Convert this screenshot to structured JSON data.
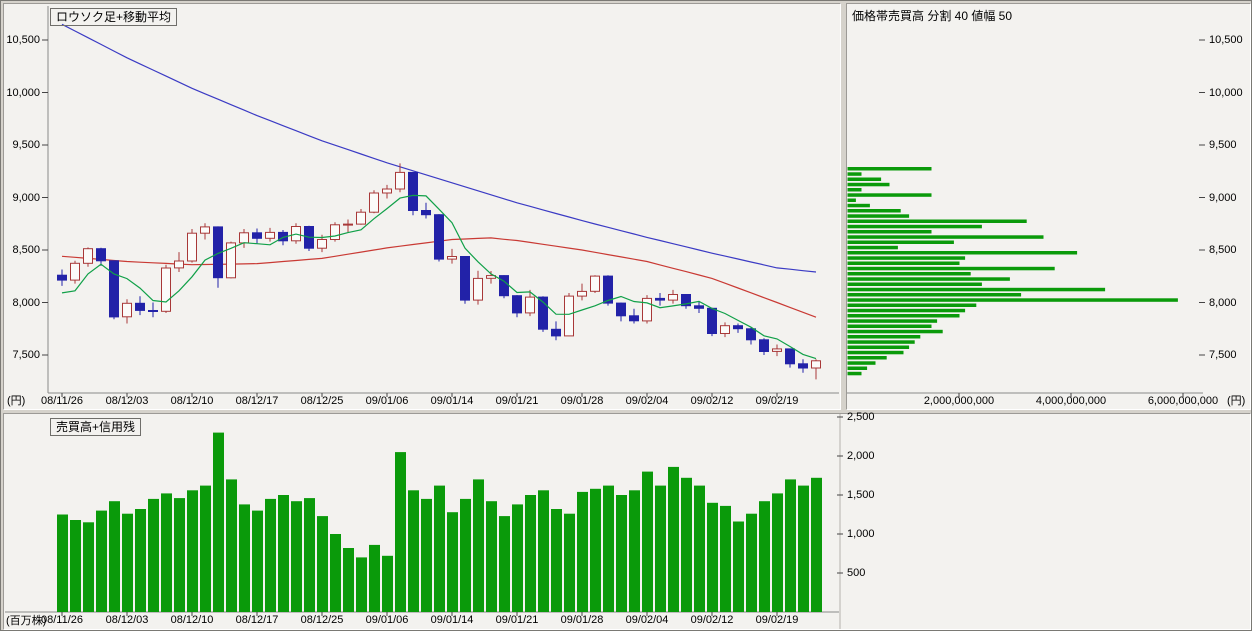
{
  "colors": {
    "app_background": "#d5d2cb",
    "plot_background": "#f3f2ef",
    "candle_up": "#a83838",
    "candle_up_fill": "#fbfbf9",
    "candle_down": "#2222a8",
    "ma_long": "#3b3bc4",
    "ma_mid": "#c93a34",
    "ma_short": "#10a048",
    "volume_bar": "#0a9a0a",
    "axis_line": "#8a8a8a",
    "tick_mark": "#444444"
  },
  "panels": {
    "main": {
      "title": "ロウソク足+移動平均",
      "y_unit": "(円)"
    },
    "pbv": {
      "title": "価格帯売買高  分割 40  値幅 50",
      "x_unit": "(円)"
    },
    "volume": {
      "title": "売買高+信用残",
      "y_unit": "(百万株)"
    }
  },
  "axis_labels": {
    "price_ticks": [
      {
        "v": 10500,
        "label": "10,500"
      },
      {
        "v": 10000,
        "label": "10,000"
      },
      {
        "v": 9500,
        "label": "9,500"
      },
      {
        "v": 9000,
        "label": "9,000"
      },
      {
        "v": 8500,
        "label": "8,500"
      },
      {
        "v": 8000,
        "label": "8,000"
      },
      {
        "v": 7500,
        "label": "7,500"
      }
    ],
    "date_ticks": [
      "08/11/26",
      "08/12/03",
      "08/12/10",
      "08/12/17",
      "08/12/25",
      "09/01/06",
      "09/01/14",
      "09/01/21",
      "09/01/28",
      "09/02/04",
      "09/02/12",
      "09/02/19"
    ],
    "pbv_value_ticks": [
      {
        "v": 2000000000,
        "label": "2,000,000,000"
      },
      {
        "v": 4000000000,
        "label": "4,000,000,000"
      },
      {
        "v": 6000000000,
        "label": "6,000,000,000"
      }
    ],
    "volume_ticks": [
      {
        "v": 2500,
        "label": "2,500"
      },
      {
        "v": 2000,
        "label": "2,000"
      },
      {
        "v": 1500,
        "label": "1,500"
      },
      {
        "v": 1000,
        "label": "1,000"
      },
      {
        "v": 500,
        "label": "500"
      }
    ]
  },
  "chart_data": [
    {
      "type": "candlestick",
      "title": "ロウソク足+移動平均",
      "unit": "円",
      "ylim": [
        7140,
        10820
      ],
      "tick_indices": [
        0,
        5,
        10,
        15,
        20,
        25,
        30,
        35,
        40,
        45,
        50,
        55
      ],
      "dates": [
        "08/11/26",
        "08/11/27",
        "08/11/28",
        "08/12/01",
        "08/12/02",
        "08/12/03",
        "08/12/04",
        "08/12/05",
        "08/12/08",
        "08/12/09",
        "08/12/10",
        "08/12/11",
        "08/12/12",
        "08/12/15",
        "08/12/16",
        "08/12/17",
        "08/12/18",
        "08/12/19",
        "08/12/22",
        "08/12/24",
        "08/12/25",
        "08/12/26",
        "08/12/29",
        "08/12/30",
        "09/01/05",
        "09/01/06",
        "09/01/07",
        "09/01/08",
        "09/01/09",
        "09/01/13",
        "09/01/14",
        "09/01/15",
        "09/01/16",
        "09/01/19",
        "09/01/20",
        "09/01/21",
        "09/01/22",
        "09/01/23",
        "09/01/26",
        "09/01/27",
        "09/01/28",
        "09/01/29",
        "09/01/30",
        "09/02/02",
        "09/02/03",
        "09/02/04",
        "09/02/05",
        "09/02/06",
        "09/02/09",
        "09/02/10",
        "09/02/12",
        "09/02/13",
        "09/02/16",
        "09/02/17",
        "09/02/18",
        "09/02/19",
        "09/02/20",
        "09/02/23",
        "09/02/24"
      ],
      "ohlc": [
        [
          8260,
          8314,
          8158,
          8213
        ],
        [
          8213,
          8398,
          8180,
          8373
        ],
        [
          8373,
          8525,
          8340,
          8512
        ],
        [
          8512,
          8522,
          8350,
          8397
        ],
        [
          8397,
          8400,
          7840,
          7863
        ],
        [
          7863,
          8030,
          7800,
          7992
        ],
        [
          7992,
          8060,
          7880,
          7924
        ],
        [
          7924,
          8000,
          7860,
          7917
        ],
        [
          7917,
          8360,
          7900,
          8329
        ],
        [
          8329,
          8480,
          8290,
          8395
        ],
        [
          8395,
          8700,
          8380,
          8660
        ],
        [
          8660,
          8755,
          8600,
          8720
        ],
        [
          8720,
          8725,
          8140,
          8236
        ],
        [
          8236,
          8580,
          8230,
          8568
        ],
        [
          8568,
          8700,
          8520,
          8664
        ],
        [
          8664,
          8705,
          8560,
          8612
        ],
        [
          8612,
          8710,
          8580,
          8668
        ],
        [
          8668,
          8690,
          8545,
          8588
        ],
        [
          8588,
          8755,
          8560,
          8724
        ],
        [
          8724,
          8730,
          8490,
          8517
        ],
        [
          8517,
          8645,
          8480,
          8600
        ],
        [
          8600,
          8765,
          8580,
          8740
        ],
        [
          8740,
          8790,
          8670,
          8747
        ],
        [
          8747,
          8890,
          8740,
          8860
        ],
        [
          8860,
          9070,
          8850,
          9043
        ],
        [
          9043,
          9120,
          8990,
          9081
        ],
        [
          9081,
          9325,
          9050,
          9239
        ],
        [
          9239,
          9240,
          8830,
          8876
        ],
        [
          8876,
          8950,
          8800,
          8836
        ],
        [
          8836,
          8840,
          8390,
          8413
        ],
        [
          8413,
          8510,
          8370,
          8438
        ],
        [
          8438,
          8440,
          7988,
          8023
        ],
        [
          8023,
          8303,
          7980,
          8230
        ],
        [
          8230,
          8300,
          8180,
          8256
        ],
        [
          8256,
          8260,
          8040,
          8065
        ],
        [
          8065,
          8070,
          7860,
          7901
        ],
        [
          7901,
          8120,
          7870,
          8051
        ],
        [
          8051,
          8060,
          7720,
          7745
        ],
        [
          7745,
          7820,
          7640,
          7682
        ],
        [
          7682,
          8090,
          7680,
          8061
        ],
        [
          8061,
          8180,
          8020,
          8106
        ],
        [
          8106,
          8260,
          8090,
          8251
        ],
        [
          8251,
          8260,
          7970,
          7994
        ],
        [
          7994,
          8000,
          7820,
          7873
        ],
        [
          7873,
          7940,
          7800,
          7825
        ],
        [
          7825,
          8070,
          7800,
          8039
        ],
        [
          8039,
          8090,
          7970,
          8023
        ],
        [
          8023,
          8120,
          7990,
          8076
        ],
        [
          8076,
          8080,
          7940,
          7969
        ],
        [
          7969,
          8010,
          7900,
          7945
        ],
        [
          7945,
          7950,
          7680,
          7705
        ],
        [
          7705,
          7810,
          7670,
          7779
        ],
        [
          7779,
          7800,
          7710,
          7750
        ],
        [
          7750,
          7760,
          7600,
          7645
        ],
        [
          7645,
          7660,
          7500,
          7534
        ],
        [
          7534,
          7600,
          7490,
          7558
        ],
        [
          7558,
          7560,
          7380,
          7416
        ],
        [
          7416,
          7460,
          7330,
          7376
        ],
        [
          7376,
          7460,
          7268,
          7445
        ]
      ],
      "ma_short_window": 5,
      "ma_short_seed_closes": [
        8273,
        7703,
        7943,
        8323
      ],
      "ma_mid_25d": [
        8440,
        8430,
        8420,
        8410,
        8400,
        8390,
        8384,
        8378,
        8372,
        8366,
        8360,
        8362,
        8364,
        8366,
        8368,
        8370,
        8380,
        8390,
        8400,
        8410,
        8420,
        8440,
        8460,
        8480,
        8500,
        8520,
        8536,
        8552,
        8568,
        8584,
        8600,
        8605,
        8610,
        8615,
        8602,
        8590,
        8572,
        8554,
        8536,
        8518,
        8500,
        8478,
        8456,
        8434,
        8412,
        8390,
        8358,
        8326,
        8294,
        8262,
        8230,
        8184,
        8138,
        8092,
        8046,
        8000,
        7953,
        7907,
        7860
      ],
      "ma_long_75d": [
        10650,
        10586,
        10522,
        10458,
        10394,
        10330,
        10272,
        10214,
        10156,
        10098,
        10040,
        9988,
        9936,
        9884,
        9832,
        9780,
        9732,
        9684,
        9636,
        9588,
        9540,
        9498,
        9456,
        9414,
        9372,
        9330,
        9292,
        9254,
        9216,
        9178,
        9140,
        9102,
        9064,
        9026,
        8988,
        8950,
        8916,
        8882,
        8848,
        8814,
        8780,
        8748,
        8716,
        8684,
        8652,
        8620,
        8590,
        8560,
        8530,
        8500,
        8470,
        8442,
        8414,
        8386,
        8358,
        8330,
        8317,
        8303,
        8290
      ]
    },
    {
      "type": "bar",
      "orientation": "horizontal",
      "title": "価格帯売買高",
      "split": 40,
      "band_width": 50,
      "price_min": 7300,
      "xlim": [
        0,
        6500000000
      ],
      "volumes_shares": [
        250000000,
        350000000,
        500000000,
        700000000,
        1000000000,
        1100000000,
        1200000000,
        1300000000,
        1700000000,
        1500000000,
        1600000000,
        2000000000,
        2100000000,
        2300000000,
        5900000000,
        3100000000,
        4600000000,
        2400000000,
        2900000000,
        2200000000,
        3700000000,
        2000000000,
        2100000000,
        4100000000,
        900000000,
        1900000000,
        3500000000,
        1500000000,
        2400000000,
        3200000000,
        1100000000,
        950000000,
        400000000,
        150000000,
        1500000000,
        250000000,
        750000000,
        600000000,
        250000000,
        1500000000
      ]
    },
    {
      "type": "bar",
      "title": "売買高+信用残",
      "unit": "百万株",
      "ylim": [
        0,
        2500
      ],
      "n_sessions": 59,
      "dates_same_as_candlestick": true,
      "values_million_shares": [
        1250,
        1180,
        1150,
        1300,
        1420,
        1260,
        1320,
        1450,
        1520,
        1460,
        1560,
        1620,
        2300,
        1700,
        1380,
        1300,
        1450,
        1500,
        1420,
        1460,
        1230,
        1000,
        820,
        700,
        860,
        720,
        2050,
        1560,
        1450,
        1620,
        1280,
        1450,
        1700,
        1420,
        1230,
        1380,
        1500,
        1560,
        1320,
        1260,
        1540,
        1580,
        1620,
        1500,
        1560,
        1800,
        1620,
        1860,
        1720,
        1620,
        1400,
        1360,
        1160,
        1260,
        1420,
        1520,
        1700,
        1620,
        1720
      ]
    }
  ]
}
